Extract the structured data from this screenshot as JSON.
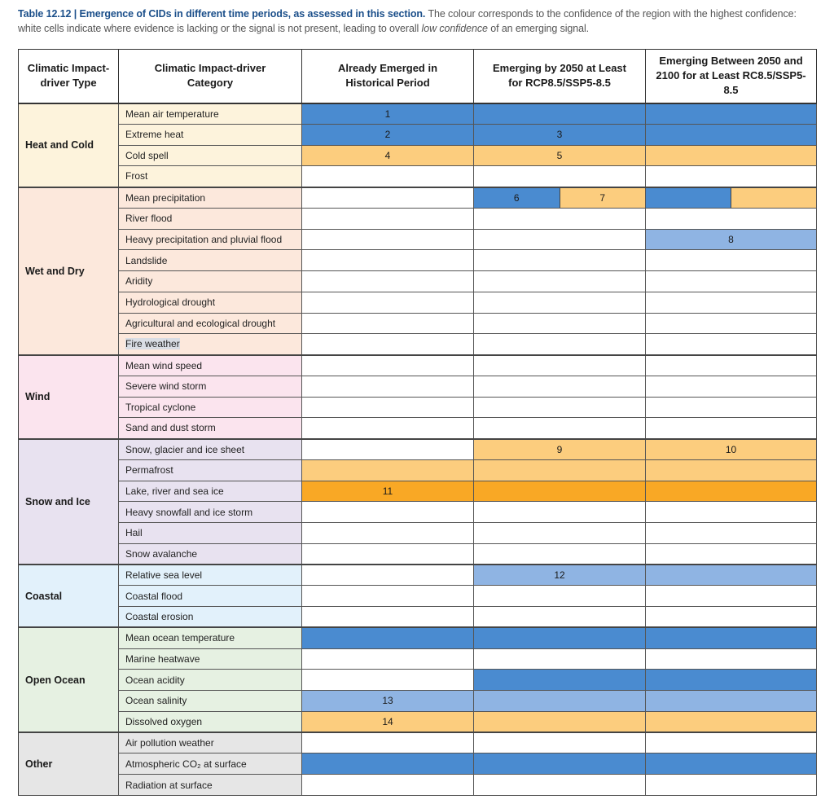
{
  "caption": {
    "lead": "Table 12.12 | Emergence of CIDs in different time periods, as assessed in this section.",
    "text_a": " The colour corresponds to the confidence of the region with the highest confidence: white cells indicate where evidence is lacking or the signal is not present, leading to overall ",
    "text_em": "low confidence",
    "text_b": " of an emerging signal."
  },
  "headers": {
    "type": "Climatic Impact-driver Type",
    "category": "Climatic Impact-driver Category",
    "historical": "Already Emerged in Historical Period",
    "by2050": "Emerging by 2050 at Least for RCP8.5/SSP5-8.5",
    "by2100": "Emerging Between 2050 and 2100 for at Least RC8.5/SSP5-8.5"
  },
  "colors": {
    "dark_blue": "#4a8bd0",
    "light_blue": "#8fb4e3",
    "light_orange": "#fccd7e",
    "dark_orange": "#f9a825",
    "white": "#ffffff"
  },
  "groups": [
    {
      "type": "Heat and Cold",
      "bg": "#fdf3dc",
      "rows": [
        {
          "category": "Mean air temperature",
          "hist": {
            "c": "dark_blue",
            "t": "1"
          },
          "e2050": {
            "c": "dark_blue",
            "t": ""
          },
          "e2100": {
            "c": "dark_blue",
            "t": ""
          }
        },
        {
          "category": "Extreme heat",
          "hist": {
            "c": "dark_blue",
            "t": "2"
          },
          "e2050": {
            "c": "dark_blue",
            "t": "3"
          },
          "e2100": {
            "c": "dark_blue",
            "t": ""
          }
        },
        {
          "category": "Cold spell",
          "hist": {
            "c": "light_orange",
            "t": "4"
          },
          "e2050": {
            "c": "light_orange",
            "t": "5"
          },
          "e2100": {
            "c": "light_orange",
            "t": ""
          }
        },
        {
          "category": "Frost",
          "hist": {
            "c": "white",
            "t": ""
          },
          "e2050": {
            "c": "white",
            "t": ""
          },
          "e2100": {
            "c": "white",
            "t": ""
          }
        }
      ]
    },
    {
      "type": "Wet and Dry",
      "bg": "#fce8dc",
      "rows": [
        {
          "category": "Mean precipitation",
          "hist": {
            "c": "white",
            "t": ""
          },
          "e2050": {
            "split": [
              {
                "c": "dark_blue",
                "t": "6"
              },
              {
                "c": "light_orange",
                "t": "7"
              }
            ]
          },
          "e2100": {
            "split": [
              {
                "c": "dark_blue",
                "t": ""
              },
              {
                "c": "light_orange",
                "t": ""
              }
            ]
          }
        },
        {
          "category": "River flood",
          "hist": {
            "c": "white",
            "t": ""
          },
          "e2050": {
            "c": "white",
            "t": ""
          },
          "e2100": {
            "c": "white",
            "t": ""
          }
        },
        {
          "category": "Heavy precipitation and pluvial flood",
          "hist": {
            "c": "white",
            "t": ""
          },
          "e2050": {
            "c": "white",
            "t": ""
          },
          "e2100": {
            "c": "light_blue",
            "t": "8"
          }
        },
        {
          "category": "Landslide",
          "hist": {
            "c": "white",
            "t": ""
          },
          "e2050": {
            "c": "white",
            "t": ""
          },
          "e2100": {
            "c": "white",
            "t": ""
          }
        },
        {
          "category": "Aridity",
          "hist": {
            "c": "white",
            "t": ""
          },
          "e2050": {
            "c": "white",
            "t": ""
          },
          "e2100": {
            "c": "white",
            "t": ""
          }
        },
        {
          "category": "Hydrological drought",
          "hist": {
            "c": "white",
            "t": ""
          },
          "e2050": {
            "c": "white",
            "t": ""
          },
          "e2100": {
            "c": "white",
            "t": ""
          }
        },
        {
          "category": "Agricultural and ecological drought",
          "hist": {
            "c": "white",
            "t": ""
          },
          "e2050": {
            "c": "white",
            "t": ""
          },
          "e2100": {
            "c": "white",
            "t": ""
          }
        },
        {
          "category": "Fire weather",
          "hl": true,
          "hist": {
            "c": "white",
            "t": ""
          },
          "e2050": {
            "c": "white",
            "t": ""
          },
          "e2100": {
            "c": "white",
            "t": ""
          }
        }
      ]
    },
    {
      "type": "Wind",
      "bg": "#fbe4ee",
      "rows": [
        {
          "category": "Mean wind speed",
          "hist": {
            "c": "white",
            "t": ""
          },
          "e2050": {
            "c": "white",
            "t": ""
          },
          "e2100": {
            "c": "white",
            "t": ""
          }
        },
        {
          "category": "Severe wind storm",
          "hist": {
            "c": "white",
            "t": ""
          },
          "e2050": {
            "c": "white",
            "t": ""
          },
          "e2100": {
            "c": "white",
            "t": ""
          }
        },
        {
          "category": "Tropical cyclone",
          "hist": {
            "c": "white",
            "t": ""
          },
          "e2050": {
            "c": "white",
            "t": ""
          },
          "e2100": {
            "c": "white",
            "t": ""
          }
        },
        {
          "category": "Sand and dust storm",
          "hist": {
            "c": "white",
            "t": ""
          },
          "e2050": {
            "c": "white",
            "t": ""
          },
          "e2100": {
            "c": "white",
            "t": ""
          }
        }
      ]
    },
    {
      "type": "Snow and Ice",
      "bg": "#e8e2f0",
      "rows": [
        {
          "category": "Snow, glacier and ice sheet",
          "hist": {
            "c": "white",
            "t": ""
          },
          "e2050": {
            "c": "light_orange",
            "t": "9"
          },
          "e2100": {
            "c": "light_orange",
            "t": "10"
          }
        },
        {
          "category": "Permafrost",
          "hist": {
            "c": "light_orange",
            "t": ""
          },
          "e2050": {
            "c": "light_orange",
            "t": ""
          },
          "e2100": {
            "c": "light_orange",
            "t": ""
          }
        },
        {
          "category": "Lake, river and sea ice",
          "hist": {
            "c": "dark_orange",
            "t": "11"
          },
          "e2050": {
            "c": "dark_orange",
            "t": ""
          },
          "e2100": {
            "c": "dark_orange",
            "t": ""
          }
        },
        {
          "category": "Heavy snowfall and ice storm",
          "hist": {
            "c": "white",
            "t": ""
          },
          "e2050": {
            "c": "white",
            "t": ""
          },
          "e2100": {
            "c": "white",
            "t": ""
          }
        },
        {
          "category": "Hail",
          "hist": {
            "c": "white",
            "t": ""
          },
          "e2050": {
            "c": "white",
            "t": ""
          },
          "e2100": {
            "c": "white",
            "t": ""
          }
        },
        {
          "category": "Snow avalanche",
          "hist": {
            "c": "white",
            "t": ""
          },
          "e2050": {
            "c": "white",
            "t": ""
          },
          "e2100": {
            "c": "white",
            "t": ""
          }
        }
      ]
    },
    {
      "type": "Coastal",
      "bg": "#e2f1fb",
      "rows": [
        {
          "category": "Relative sea level",
          "hist": {
            "c": "white",
            "t": ""
          },
          "e2050": {
            "c": "light_blue",
            "t": "12"
          },
          "e2100": {
            "c": "light_blue",
            "t": ""
          }
        },
        {
          "category": "Coastal flood",
          "hist": {
            "c": "white",
            "t": ""
          },
          "e2050": {
            "c": "white",
            "t": ""
          },
          "e2100": {
            "c": "white",
            "t": ""
          }
        },
        {
          "category": "Coastal erosion",
          "hist": {
            "c": "white",
            "t": ""
          },
          "e2050": {
            "c": "white",
            "t": ""
          },
          "e2100": {
            "c": "white",
            "t": ""
          }
        }
      ]
    },
    {
      "type": "Open Ocean",
      "bg": "#e6f1e2",
      "rows": [
        {
          "category": "Mean ocean temperature",
          "hist": {
            "c": "dark_blue",
            "t": ""
          },
          "e2050": {
            "c": "dark_blue",
            "t": ""
          },
          "e2100": {
            "c": "dark_blue",
            "t": ""
          }
        },
        {
          "category": "Marine heatwave",
          "hist": {
            "c": "white",
            "t": ""
          },
          "e2050": {
            "c": "white",
            "t": ""
          },
          "e2100": {
            "c": "white",
            "t": ""
          }
        },
        {
          "category": "Ocean acidity",
          "hist": {
            "c": "white",
            "t": ""
          },
          "e2050": {
            "c": "dark_blue",
            "t": ""
          },
          "e2100": {
            "c": "dark_blue",
            "t": ""
          }
        },
        {
          "category": "Ocean salinity",
          "hist": {
            "c": "light_blue",
            "t": "13"
          },
          "e2050": {
            "c": "light_blue",
            "t": ""
          },
          "e2100": {
            "c": "light_blue",
            "t": ""
          }
        },
        {
          "category": "Dissolved oxygen",
          "hist": {
            "c": "light_orange",
            "t": "14"
          },
          "e2050": {
            "c": "light_orange",
            "t": ""
          },
          "e2100": {
            "c": "light_orange",
            "t": ""
          }
        }
      ]
    },
    {
      "type": "Other",
      "bg": "#e6e6e6",
      "rows": [
        {
          "category": "Air pollution weather",
          "hist": {
            "c": "white",
            "t": ""
          },
          "e2050": {
            "c": "white",
            "t": ""
          },
          "e2100": {
            "c": "white",
            "t": ""
          }
        },
        {
          "category": "Atmospheric CO₂ at surface",
          "hist": {
            "c": "dark_blue",
            "t": ""
          },
          "e2050": {
            "c": "dark_blue",
            "t": ""
          },
          "e2100": {
            "c": "dark_blue",
            "t": ""
          }
        },
        {
          "category": "Radiation at surface",
          "hist": {
            "c": "white",
            "t": ""
          },
          "e2050": {
            "c": "white",
            "t": ""
          },
          "e2100": {
            "c": "white",
            "t": ""
          }
        }
      ]
    }
  ]
}
